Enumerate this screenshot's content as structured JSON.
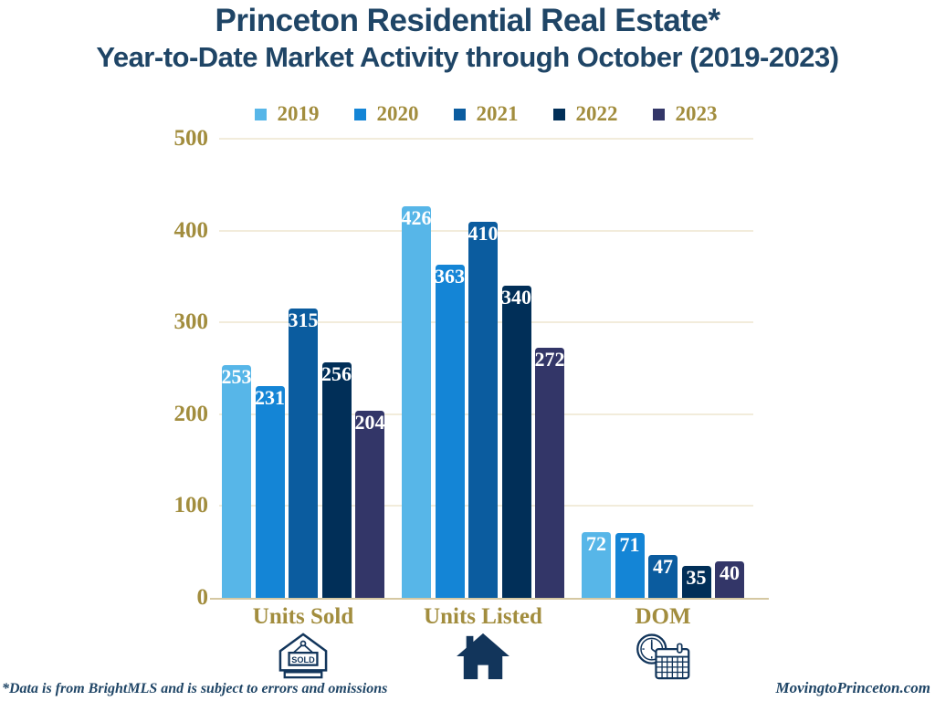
{
  "header": {
    "title": "Princeton Residential Real Estate*",
    "subtitle": "Year-to-Date Market Activity through October (2019-2023)"
  },
  "footer": {
    "note": "*Data is from BrightMLS and is subject to errors and omissions",
    "site": "MovingtoPrinceton.com"
  },
  "colors": {
    "navy": "#1F4566",
    "gold": "#A28D3E",
    "gridline": "#F2ECDB",
    "baseline": "#D5C8A2",
    "bar_label": "#FFFFFF",
    "icon_navy": "#12355B"
  },
  "icons": {
    "sold_sign_text": "SOLD"
  },
  "chart_data": {
    "type": "bar",
    "title": "Princeton Residential Real Estate* Year-to-Date Market Activity through October (2019-2023)",
    "categories": [
      "Units Sold",
      "Units Listed",
      "DOM"
    ],
    "category_icons": [
      "sold-sign-icon",
      "house-icon",
      "clock-calendar-icon"
    ],
    "series": [
      {
        "name": "2019",
        "color": "#57B6E8",
        "values": [
          253,
          426,
          72
        ]
      },
      {
        "name": "2020",
        "color": "#1485D6",
        "values": [
          231,
          363,
          71
        ]
      },
      {
        "name": "2021",
        "color": "#0B5C9F",
        "values": [
          315,
          410,
          47
        ]
      },
      {
        "name": "2022",
        "color": "#012F58",
        "values": [
          256,
          340,
          35
        ]
      },
      {
        "name": "2023",
        "color": "#333668",
        "values": [
          204,
          272,
          40
        ]
      }
    ],
    "xlabel": "",
    "ylabel": "",
    "ylim": [
      0,
      500
    ],
    "yticks": [
      0,
      100,
      200,
      300,
      400,
      500
    ],
    "grid": true,
    "legend_position": "top",
    "value_labels": true
  }
}
